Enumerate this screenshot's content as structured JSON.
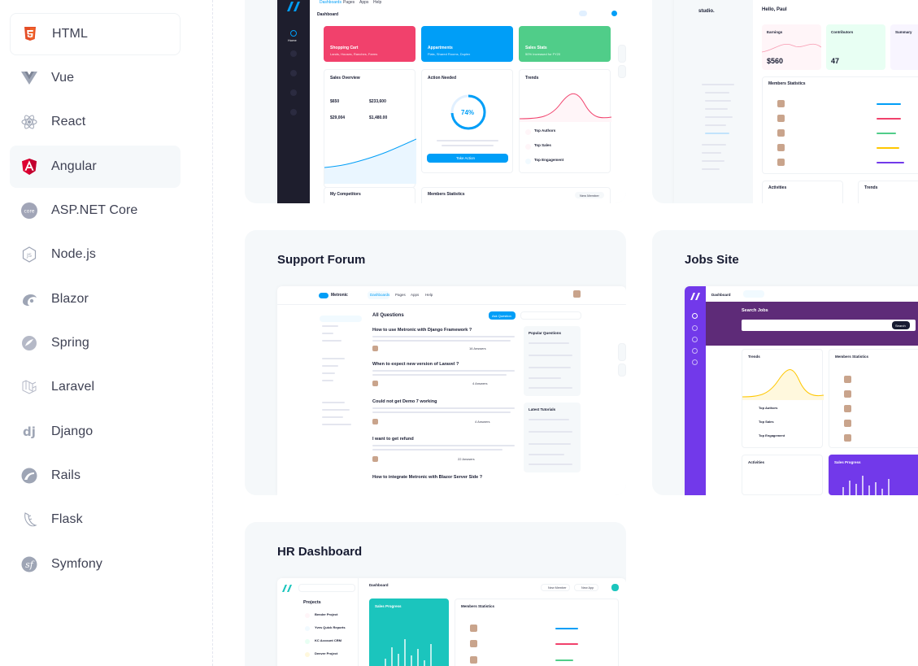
{
  "sidebar": {
    "items": [
      {
        "label": "HTML",
        "icon": "html5-icon"
      },
      {
        "label": "Vue",
        "icon": "vue-icon"
      },
      {
        "label": "React",
        "icon": "react-icon"
      },
      {
        "label": "Angular",
        "icon": "angular-icon"
      },
      {
        "label": "ASP.NET Core",
        "icon": "aspnet-core-icon"
      },
      {
        "label": "Node.js",
        "icon": "nodejs-icon"
      },
      {
        "label": "Blazor",
        "icon": "blazor-icon"
      },
      {
        "label": "Spring",
        "icon": "spring-icon"
      },
      {
        "label": "Laravel",
        "icon": "laravel-icon"
      },
      {
        "label": "Django",
        "icon": "django-icon"
      },
      {
        "label": "Rails",
        "icon": "rails-icon"
      },
      {
        "label": "Flask",
        "icon": "flask-icon"
      },
      {
        "label": "Symfony",
        "icon": "symfony-icon"
      }
    ]
  },
  "demos": {
    "support_forum": {
      "title": "Support Forum"
    },
    "jobs_site": {
      "title": "Jobs Site"
    },
    "hr_dashboard": {
      "title": "HR Dashboard"
    }
  },
  "dash1": {
    "nav": [
      "Dashboards",
      "Pages",
      "Apps",
      "Help"
    ],
    "title": "Dashboard",
    "cards": [
      {
        "title": "Shopping Cart",
        "sub": "Lands, Houses, Ranches, Farms",
        "color": "#f1416c"
      },
      {
        "title": "Appartments",
        "sub": "Flats, Shared Rooms, Duplex",
        "color": "#009ef7"
      },
      {
        "title": "Sales Stats",
        "sub": "50% Increased for FY20",
        "color": "#50cd89"
      }
    ],
    "sales_overview": "Sales Overview",
    "action_needed": "Action Needed",
    "trends": "Trends",
    "percent": "74%",
    "take_action": "Take Action",
    "v1": "$650",
    "v2": "$233,600",
    "v3": "$29,004",
    "v4": "$1,480.00",
    "top_authors": "Top Authors",
    "top_sales": "Top Sales",
    "top_engagement": "Top Engagement",
    "my_competitors": "My Competitors",
    "members_statistics": "Members Statistics",
    "new_member": "New Member"
  },
  "studio": {
    "brand": "studio.",
    "greeting": "Hello, Paul",
    "earnings": "Earnings",
    "earnings_value": "$560",
    "contributors": "Contributors",
    "contributors_value": "47",
    "summary": "Summary",
    "members_statistics": "Members Statistics",
    "activities": "Activities",
    "trends": "Trends"
  },
  "forum": {
    "brand": "Metronic",
    "nav": [
      "Dashboards",
      "Pages",
      "Apps",
      "Help"
    ],
    "all_questions": "All Questions",
    "ask_question": "Ask Question",
    "questions": [
      {
        "title": "How to use Metronic with Django Framework ?",
        "answers": "16 Answers"
      },
      {
        "title": "When to expect new version of Laravel ?",
        "answers": "4 Answers"
      },
      {
        "title": "Could not get Demo 7 working",
        "answers": "4 Answers"
      },
      {
        "title": "I want to get refund",
        "answers": "22 Answers"
      },
      {
        "title": "How to integrate Metronic with Blazor Server Side ?",
        "answers": ""
      }
    ],
    "popular": "Popular Questions",
    "latest": "Latest Tutorials"
  },
  "jobs": {
    "nav": "Dashboard",
    "search_jobs": "Search Jobs",
    "search_btn": "Search",
    "trends": "Trends",
    "members_statistics": "Members Statistics",
    "activities": "Activities",
    "sales_progress": "Sales Progress",
    "top_authors": "Top Authors",
    "top_sales": "Top Sales",
    "top_engagement": "Top Engagement"
  },
  "hr": {
    "projects": "Projects",
    "dashboard": "Dashboard",
    "sales_progress": "Sales Progress",
    "members_statistics": "Members Statistics",
    "new_member": "New Member",
    "new_app": "New App",
    "project_names": [
      "Bender Project",
      "Yves Quick Reports",
      "KC Account CRM",
      "Denver Project"
    ]
  }
}
